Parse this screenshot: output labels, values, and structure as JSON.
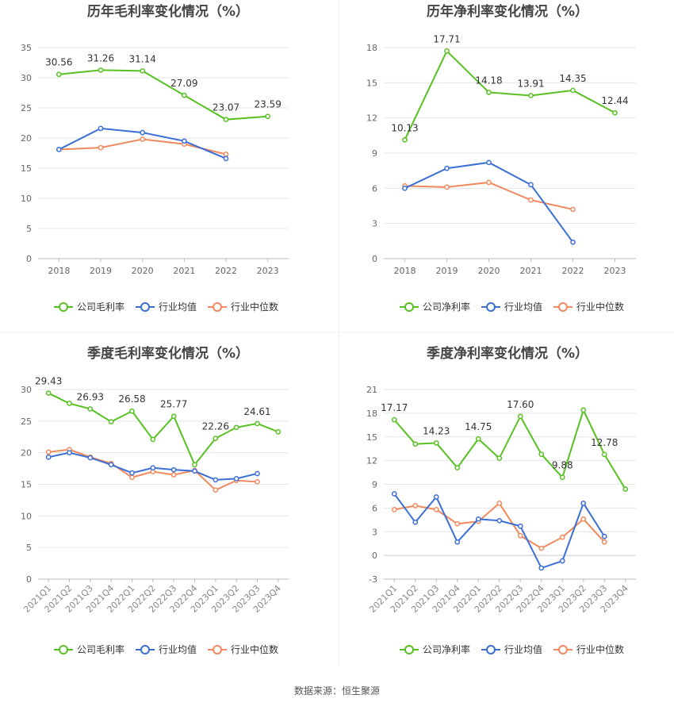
{
  "source": "数据来源：恒生聚源",
  "colors": {
    "company": "#58c122",
    "industry_avg": "#3b6fd6",
    "industry_median": "#f08a5d",
    "grid": "#e6e6e6",
    "axis": "#888888",
    "title": "#444444"
  },
  "chart_data": [
    {
      "id": "annual-gross",
      "type": "line",
      "title": "历年毛利率变化情况（%）",
      "categories": [
        "2018",
        "2019",
        "2020",
        "2021",
        "2022",
        "2023"
      ],
      "ylim": [
        0,
        35
      ],
      "yticks": [
        0,
        5,
        10,
        15,
        20,
        25,
        30,
        35
      ],
      "label_series": 0,
      "series": [
        {
          "name": "公司毛利率",
          "key": "company",
          "values": [
            30.56,
            31.26,
            31.14,
            27.09,
            23.07,
            23.59
          ]
        },
        {
          "name": "行业均值",
          "key": "industry_avg",
          "values": [
            18.1,
            21.6,
            20.9,
            19.5,
            16.6,
            null
          ]
        },
        {
          "name": "行业中位数",
          "key": "industry_median",
          "values": [
            18.1,
            18.4,
            19.8,
            19.0,
            17.3,
            null
          ]
        }
      ],
      "data_labels": [
        "30.56",
        "31.26",
        "31.14",
        "27.09",
        "23.07",
        "23.59"
      ]
    },
    {
      "id": "annual-net",
      "type": "line",
      "title": "历年净利率变化情况（%）",
      "categories": [
        "2018",
        "2019",
        "2020",
        "2021",
        "2022",
        "2023"
      ],
      "ylim": [
        0,
        18
      ],
      "yticks": [
        0,
        3,
        6,
        9,
        12,
        15,
        18
      ],
      "label_series": 0,
      "series": [
        {
          "name": "公司净利率",
          "key": "company",
          "values": [
            10.13,
            17.71,
            14.18,
            13.91,
            14.35,
            12.44
          ]
        },
        {
          "name": "行业均值",
          "key": "industry_avg",
          "values": [
            6.0,
            7.7,
            8.2,
            6.3,
            1.4,
            null
          ]
        },
        {
          "name": "行业中位数",
          "key": "industry_median",
          "values": [
            6.2,
            6.1,
            6.5,
            5.0,
            4.2,
            null
          ]
        }
      ],
      "data_labels": [
        "10.13",
        "17.71",
        "14.18",
        "13.91",
        "14.35",
        "12.44"
      ]
    },
    {
      "id": "quarterly-gross",
      "type": "line",
      "title": "季度毛利率变化情况（%）",
      "categories": [
        "2021Q1",
        "2021Q2",
        "2021Q3",
        "2021Q4",
        "2022Q1",
        "2022Q2",
        "2022Q3",
        "2022Q4",
        "2023Q1",
        "2023Q2",
        "2023Q3",
        "2023Q4"
      ],
      "ylim": [
        0,
        30
      ],
      "yticks": [
        0,
        5,
        10,
        15,
        20,
        25,
        30
      ],
      "rotate_x": true,
      "label_series": 0,
      "series": [
        {
          "name": "公司毛利率",
          "key": "company",
          "values": [
            29.43,
            27.8,
            26.93,
            24.9,
            26.58,
            22.1,
            25.77,
            18.1,
            22.26,
            24.0,
            24.61,
            23.3
          ]
        },
        {
          "name": "行业均值",
          "key": "industry_avg",
          "values": [
            19.3,
            20.0,
            19.2,
            18.1,
            16.8,
            17.6,
            17.3,
            17.1,
            15.7,
            15.9,
            16.7,
            null
          ]
        },
        {
          "name": "行业中位数",
          "key": "industry_median",
          "values": [
            20.1,
            20.5,
            19.3,
            18.3,
            16.1,
            17.0,
            16.5,
            17.2,
            14.1,
            15.6,
            15.4,
            null
          ]
        }
      ],
      "data_labels": [
        "29.43",
        "",
        "26.93",
        "",
        "26.58",
        "",
        "25.77",
        "",
        "22.26",
        "",
        "24.61",
        ""
      ]
    },
    {
      "id": "quarterly-net",
      "type": "line",
      "title": "季度净利率变化情况（%）",
      "categories": [
        "2021Q1",
        "2021Q2",
        "2021Q3",
        "2021Q4",
        "2022Q1",
        "2022Q2",
        "2022Q3",
        "2022Q4",
        "2023Q1",
        "2023Q2",
        "2023Q3",
        "2023Q4"
      ],
      "ylim": [
        -3,
        21
      ],
      "yticks": [
        -3,
        0,
        3,
        6,
        9,
        12,
        15,
        18,
        21
      ],
      "rotate_x": true,
      "label_series": 0,
      "series": [
        {
          "name": "公司净利率",
          "key": "company",
          "values": [
            17.17,
            14.1,
            14.23,
            11.1,
            14.75,
            12.3,
            17.6,
            12.8,
            9.88,
            18.4,
            12.78,
            8.4
          ]
        },
        {
          "name": "行业均值",
          "key": "industry_avg",
          "values": [
            7.8,
            4.2,
            7.4,
            1.7,
            4.6,
            4.4,
            3.7,
            -1.6,
            -0.7,
            6.6,
            2.4,
            null
          ]
        },
        {
          "name": "行业中位数",
          "key": "industry_median",
          "values": [
            5.8,
            6.3,
            5.8,
            4.0,
            4.3,
            6.6,
            2.5,
            0.9,
            2.3,
            4.6,
            1.7,
            null
          ]
        }
      ],
      "data_labels": [
        "17.17",
        "",
        "14.23",
        "",
        "14.75",
        "",
        "17.60",
        "",
        "9.88",
        "",
        "12.78",
        ""
      ]
    }
  ]
}
